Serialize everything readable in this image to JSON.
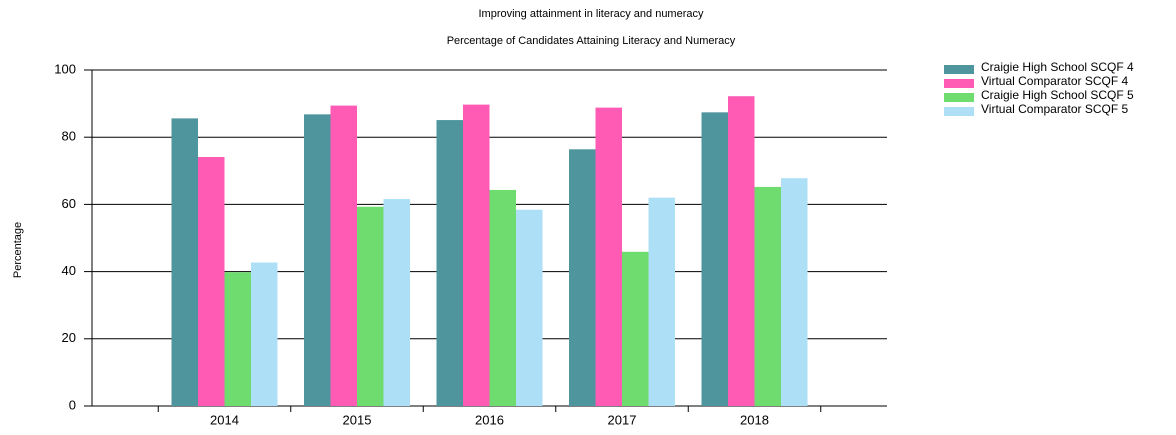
{
  "chart_data": {
    "type": "bar",
    "title": "Improving attainment in literacy and numeracy",
    "subtitle": "Percentage of Candidates Attaining Literacy and Numeracy",
    "y_label": "Percentage",
    "categories": [
      "2014",
      "2015",
      "2016",
      "2017",
      "2018"
    ],
    "series": [
      {
        "name": "Craigie High School SCQF 4",
        "color": "#4e959d",
        "values": [
          85.6,
          86.8,
          85.1,
          76.4,
          87.4
        ]
      },
      {
        "name": "Virtual Comparator SCQF 4",
        "color": "#ff5ab4",
        "values": [
          74.1,
          89.4,
          89.7,
          88.8,
          92.2
        ]
      },
      {
        "name": "Craigie High School SCQF 5",
        "color": "#6fdc6f",
        "values": [
          39.8,
          59.3,
          64.3,
          45.9,
          65.2
        ]
      },
      {
        "name": "Virtual Comparator SCQF 5",
        "color": "#ade0f7",
        "values": [
          42.7,
          61.6,
          58.4,
          62.0,
          67.8
        ]
      }
    ],
    "ylim": [
      0,
      100
    ],
    "yticks": [
      0,
      20,
      40,
      60,
      80,
      100
    ],
    "grid": true,
    "legend": "right"
  }
}
